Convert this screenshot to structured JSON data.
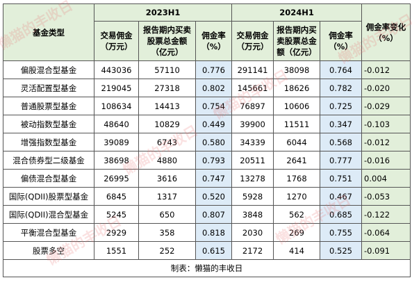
{
  "table": {
    "group_headers": [
      "2023H1",
      "2024H1"
    ],
    "headers": [
      "基金类型",
      "交易佣金（万元）",
      "报告期内买卖股票总金额（亿元）",
      "佣金率（%）",
      "交易佣金（万元）",
      "报告期内买卖股票总金额（亿元）",
      "佣金率（%）",
      "佣金率变化（%）"
    ],
    "rows": [
      [
        "偏股混合型基金",
        "443036",
        "57110",
        "0.776",
        "291141",
        "38098",
        "0.764",
        "-0.012"
      ],
      [
        "灵活配置型基金",
        "219045",
        "27318",
        "0.802",
        "145661",
        "18626",
        "0.782",
        "-0.020"
      ],
      [
        "普通股票型基金",
        "108634",
        "14413",
        "0.754",
        "76897",
        "10606",
        "0.725",
        "-0.029"
      ],
      [
        "被动指数型基金",
        "48640",
        "10829",
        "0.449",
        "39900",
        "11511",
        "0.347",
        "-0.103"
      ],
      [
        "增强指数型基金",
        "39089",
        "6743",
        "0.580",
        "34339",
        "6044",
        "0.568",
        "-0.012"
      ],
      [
        "混合债券型二级基金",
        "38698",
        "4880",
        "0.793",
        "20511",
        "2641",
        "0.777",
        "-0.016"
      ],
      [
        "偏债混合型基金",
        "26995",
        "3616",
        "0.747",
        "13278",
        "1768",
        "0.751",
        "0.004"
      ],
      [
        "国际(QDII)股票型基金",
        "6845",
        "1317",
        "0.520",
        "5928",
        "1270",
        "0.467",
        "-0.053"
      ],
      [
        "国际(QDII)混合型基金",
        "5245",
        "650",
        "0.807",
        "3848",
        "562",
        "0.685",
        "-0.122"
      ],
      [
        "平衡混合型基金",
        "2929",
        "358",
        "0.818",
        "2030",
        "269",
        "0.755",
        "-0.064"
      ],
      [
        "股票多空",
        "1551",
        "252",
        "0.615",
        "2172",
        "414",
        "0.525",
        "-0.091"
      ]
    ],
    "footer": "制表：懒猫的丰收日"
  },
  "watermark": "懒猫的丰收日"
}
